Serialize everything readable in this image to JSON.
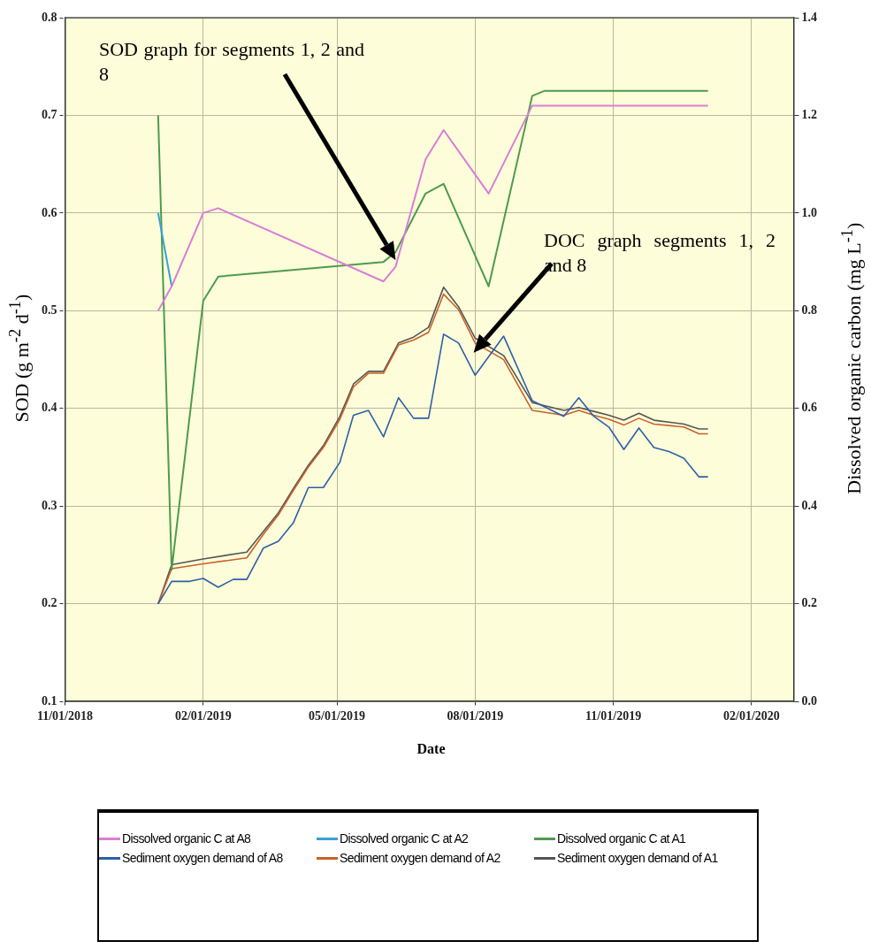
{
  "chart_data": {
    "type": "line",
    "xlabel": "Date",
    "ylabel": "SOD (g m$^{-2}$ d$^{-1}$)",
    "y2label": "Dissolved organic carbon (mg L$^{-1}$)",
    "annotations": [
      "SOD graph for segments 1, 2 and 8",
      "DOC graph segments 1, 2 and 8"
    ],
    "xlim": [
      "2018-11-01",
      "2020-02-29"
    ],
    "xticks": [
      {
        "value": "2018-11-01",
        "label": "11/01/2018"
      },
      {
        "value": "2019-02-01",
        "label": "02/01/2019"
      },
      {
        "value": "2019-05-01",
        "label": "05/01/2019"
      },
      {
        "value": "2019-08-01",
        "label": "08/01/2019"
      },
      {
        "value": "2019-11-01",
        "label": "11/01/2019"
      },
      {
        "value": "2020-02-01",
        "label": "02/01/2020"
      }
    ],
    "ylim": [
      0.1,
      0.8
    ],
    "yticks": [
      0.1,
      0.2,
      0.3,
      0.4,
      0.5,
      0.6,
      0.7,
      0.8
    ],
    "y2lim": [
      0.0,
      1.4
    ],
    "y2ticks": [
      {
        "value": 0,
        "label": "0.0"
      },
      0.2,
      0.4,
      0.6,
      0.8,
      {
        "value": 1,
        "label": "1.0"
      },
      1.2,
      1.4
    ],
    "grid": true,
    "legend": "bottom",
    "series": [
      {
        "name": "Dissolved organic C at A8",
        "color": "#d77fd7",
        "axis": "y2",
        "x": [
          "2019-01-02",
          "2019-01-11",
          "2019-02-01",
          "2019-02-11",
          "2019-06-01",
          "2019-06-09",
          "2019-06-29",
          "2019-07-11",
          "2019-08-10",
          "2019-09-08",
          "2019-09-16",
          "2020-01-03"
        ],
        "values": [
          0.8,
          0.85,
          1.0,
          1.01,
          0.86,
          0.89,
          1.11,
          1.17,
          1.04,
          1.22,
          1.22,
          1.22
        ]
      },
      {
        "name": "Dissolved organic C at A2",
        "color": "#3aa0d8",
        "axis": "y2",
        "x": [
          "2019-01-02",
          "2019-01-11"
        ],
        "values": [
          1.0,
          0.85
        ]
      },
      {
        "name": "Dissolved organic C at A1",
        "color": "#4f9a4f",
        "axis": "y2",
        "x": [
          "2019-01-02",
          "2019-01-11",
          "2019-02-01",
          "2019-02-11",
          "2019-06-01",
          "2019-06-09",
          "2019-06-29",
          "2019-07-11",
          "2019-08-10",
          "2019-09-08",
          "2019-09-16",
          "2020-01-03"
        ],
        "values": [
          1.2,
          0.27,
          0.82,
          0.87,
          0.9,
          0.92,
          1.04,
          1.06,
          0.85,
          1.24,
          1.25,
          1.25
        ]
      },
      {
        "name": "Sediment oxygen demand of A8",
        "color": "#2f5fa8",
        "x": [
          "2019-01-02",
          "2019-01-11",
          "2019-01-23",
          "2019-02-01",
          "2019-02-11",
          "2019-02-21",
          "2019-03-02",
          "2019-03-13",
          "2019-03-23",
          "2019-04-02",
          "2019-04-12",
          "2019-04-22",
          "2019-05-03",
          "2019-05-12",
          "2019-05-22",
          "2019-06-01",
          "2019-06-11",
          "2019-06-21",
          "2019-07-01",
          "2019-07-11",
          "2019-07-21",
          "2019-08-01",
          "2019-08-20",
          "2019-09-08",
          "2019-09-29",
          "2019-10-09",
          "2019-10-19",
          "2019-10-29",
          "2019-11-08",
          "2019-11-18",
          "2019-11-28",
          "2019-12-08",
          "2019-12-18",
          "2019-12-28",
          "2020-01-03"
        ],
        "values": [
          0.2,
          0.223,
          0.223,
          0.226,
          0.217,
          0.225,
          0.225,
          0.257,
          0.264,
          0.283,
          0.319,
          0.319,
          0.345,
          0.393,
          0.398,
          0.371,
          0.411,
          0.39,
          0.39,
          0.476,
          0.467,
          0.434,
          0.474,
          0.408,
          0.392,
          0.411,
          0.392,
          0.381,
          0.358,
          0.38,
          0.36,
          0.356,
          0.349,
          0.33,
          0.33
        ]
      },
      {
        "name": "Sediment oxygen demand of A2",
        "color": "#c8622a",
        "x": [
          "2019-01-02",
          "2019-01-11",
          "2019-02-01",
          "2019-03-02",
          "2019-03-13",
          "2019-03-23",
          "2019-04-02",
          "2019-04-12",
          "2019-04-22",
          "2019-05-03",
          "2019-05-12",
          "2019-05-22",
          "2019-06-01",
          "2019-06-11",
          "2019-06-21",
          "2019-07-01",
          "2019-07-11",
          "2019-07-21",
          "2019-08-01",
          "2019-08-20",
          "2019-09-08",
          "2019-09-29",
          "2019-10-09",
          "2019-10-19",
          "2019-10-29",
          "2019-11-08",
          "2019-11-18",
          "2019-11-28",
          "2019-12-18",
          "2019-12-28",
          "2020-01-03"
        ],
        "values": [
          0.2,
          0.236,
          0.241,
          0.247,
          0.271,
          0.291,
          0.316,
          0.34,
          0.36,
          0.389,
          0.422,
          0.436,
          0.436,
          0.465,
          0.47,
          0.478,
          0.517,
          0.501,
          0.467,
          0.45,
          0.398,
          0.393,
          0.398,
          0.393,
          0.389,
          0.383,
          0.39,
          0.384,
          0.381,
          0.374,
          0.374
        ]
      },
      {
        "name": "Sediment oxygen demand of A1",
        "color": "#555555",
        "x": [
          "2019-01-02",
          "2019-01-11",
          "2019-02-01",
          "2019-03-02",
          "2019-03-13",
          "2019-03-23",
          "2019-04-02",
          "2019-04-12",
          "2019-04-22",
          "2019-05-03",
          "2019-05-12",
          "2019-05-22",
          "2019-06-01",
          "2019-06-11",
          "2019-06-21",
          "2019-07-01",
          "2019-07-11",
          "2019-07-21",
          "2019-08-01",
          "2019-08-20",
          "2019-09-08",
          "2019-09-29",
          "2019-10-09",
          "2019-10-19",
          "2019-10-29",
          "2019-11-08",
          "2019-11-18",
          "2019-11-28",
          "2019-12-18",
          "2019-12-28",
          "2020-01-03"
        ],
        "values": [
          0.2,
          0.24,
          0.246,
          0.253,
          0.274,
          0.293,
          0.318,
          0.342,
          0.362,
          0.392,
          0.425,
          0.438,
          0.438,
          0.467,
          0.473,
          0.483,
          0.524,
          0.504,
          0.472,
          0.454,
          0.406,
          0.398,
          0.401,
          0.397,
          0.393,
          0.388,
          0.395,
          0.388,
          0.384,
          0.379,
          0.379
        ]
      }
    ]
  }
}
